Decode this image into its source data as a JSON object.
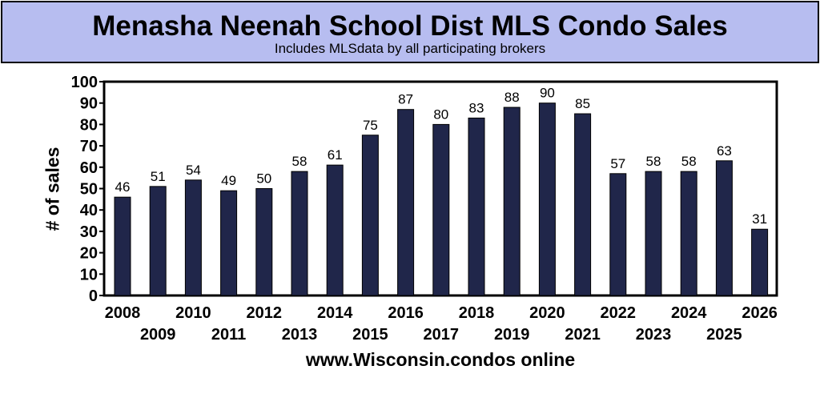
{
  "header": {
    "title": "Menasha Neenah School Dist MLS Condo Sales",
    "subtitle": "Includes MLSdata  by all participating brokers"
  },
  "footer": {
    "text": "www.Wisconsin.condos online"
  },
  "colors": {
    "header_bg": "#b7bdf0",
    "bar": "#20264a"
  },
  "chart_data": {
    "type": "bar",
    "ylabel": "# of sales",
    "xlabel": "www.Wisconsin.condos online",
    "ylim": [
      0,
      100
    ],
    "yticks": [
      0,
      10,
      20,
      30,
      40,
      50,
      60,
      70,
      80,
      90,
      100
    ],
    "grid": false,
    "categories": [
      "2008",
      "2009",
      "2010",
      "2011",
      "2012",
      "2013",
      "2014",
      "2015",
      "2016",
      "2017",
      "2018",
      "2019",
      "2020",
      "2021",
      "2022",
      "2023",
      "2024",
      "2025",
      "2026"
    ],
    "values": [
      46,
      51,
      54,
      49,
      50,
      58,
      61,
      75,
      87,
      80,
      83,
      88,
      90,
      85,
      57,
      58,
      58,
      63,
      31
    ]
  }
}
